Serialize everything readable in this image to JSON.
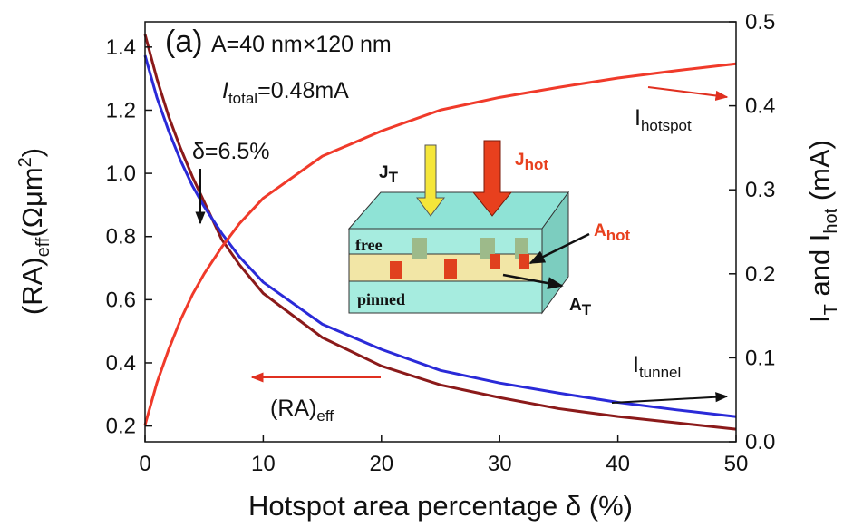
{
  "chart_data": {
    "type": "line",
    "xlabel": "Hotspot area percentage δ (%)",
    "ylabel": {
      "main": "(RA)",
      "sub": "eff",
      "unit": "(Ωμm",
      "sup": "2",
      "close": ")"
    },
    "y2label": {
      "main": "I",
      "sub": "T",
      "mid": " and I",
      "sub2": "hot",
      "unit": " (mA)"
    },
    "x": [
      0,
      1,
      2,
      3,
      4,
      5,
      6.5,
      8,
      10,
      15,
      20,
      25,
      30,
      35,
      40,
      45,
      50
    ],
    "series": [
      {
        "color": "#8b1a1a",
        "axis": "y",
        "values": [
          1.44,
          1.3,
          1.18,
          1.08,
          0.99,
          0.91,
          0.79,
          0.71,
          0.62,
          0.48,
          0.39,
          0.33,
          0.29,
          0.255,
          0.23,
          0.21,
          0.19
        ]
      },
      {
        "color": "#2a2ad8",
        "axis": "y2",
        "values": [
          0.46,
          0.41,
          0.37,
          0.335,
          0.305,
          0.28,
          0.248,
          0.22,
          0.19,
          0.14,
          0.11,
          0.085,
          0.07,
          0.058,
          0.047,
          0.038,
          0.03
        ]
      },
      {
        "color": "#f03a2a",
        "axis": "y2",
        "values": [
          0.02,
          0.07,
          0.11,
          0.145,
          0.175,
          0.2,
          0.232,
          0.26,
          0.29,
          0.34,
          0.37,
          0.395,
          0.41,
          0.422,
          0.433,
          0.442,
          0.45
        ]
      }
    ],
    "xlim": [
      0,
      50
    ],
    "xticks": [
      0,
      10,
      20,
      30,
      40,
      50
    ],
    "ylim": [
      0.15,
      1.48
    ],
    "yticks": [
      0.2,
      0.4,
      0.6,
      0.8,
      {
        "value": 1,
        "label": "1.0"
      },
      1.2,
      1.4
    ],
    "y2lim": [
      0,
      0.5
    ],
    "y2ticks": [
      {
        "value": 0,
        "label": "0.0"
      },
      0.1,
      0.2,
      0.3,
      0.4,
      0.5
    ],
    "annotations": {
      "panel": "(a)",
      "area": "A=40 nm×120 nm",
      "total": {
        "main": "I",
        "sub": "total",
        "after": "=0.48mA"
      },
      "delta": "δ=6.5%",
      "hotspot": {
        "main": "I",
        "sub": "hotspot"
      },
      "tunnel": {
        "main": "I",
        "sub": "tunnel"
      },
      "ra": {
        "main": "(RA)",
        "sub": "eff"
      }
    },
    "inset": {
      "jt": {
        "main": "J",
        "sub": "T"
      },
      "jhot": {
        "main": "J",
        "sub": "hot"
      },
      "ahot": {
        "main": "A",
        "sub": "hot"
      },
      "at": {
        "main": "A",
        "sub": "T"
      },
      "free": "free",
      "pinned": "pinned"
    }
  }
}
